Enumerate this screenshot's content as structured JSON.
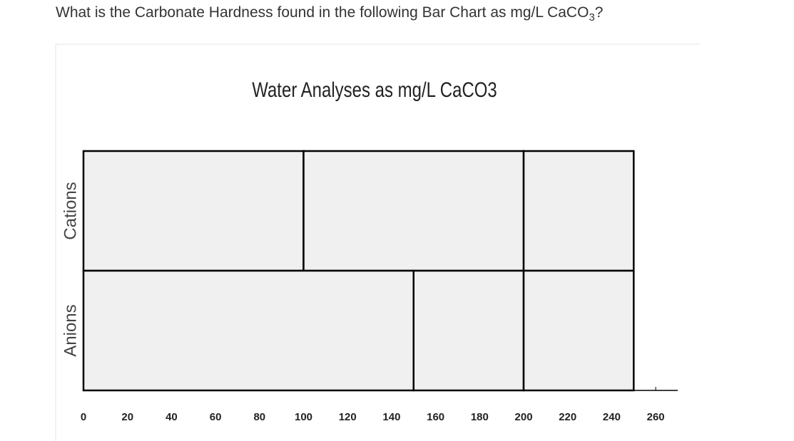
{
  "question": {
    "text": "What is the Carbonate Hardness found in the following Bar Chart as mg/L CaCO",
    "sub": "3",
    "end": "?"
  },
  "chart_data": {
    "type": "bar",
    "orientation": "horizontal",
    "stacked": true,
    "title": "Water Analyses as mg/L CaCO3",
    "categories": [
      "Cations",
      "Anions"
    ],
    "series": [
      {
        "color": "#f0f0f0",
        "values": [
          100,
          150
        ]
      },
      {
        "color": "#f0f0f0",
        "values": [
          100,
          50
        ]
      },
      {
        "color": "#f0f0f0",
        "values": [
          50,
          50
        ]
      }
    ],
    "xlim": [
      0,
      270
    ],
    "xticks": [
      0,
      20,
      40,
      60,
      80,
      100,
      120,
      140,
      160,
      180,
      200,
      220,
      240,
      260
    ]
  }
}
